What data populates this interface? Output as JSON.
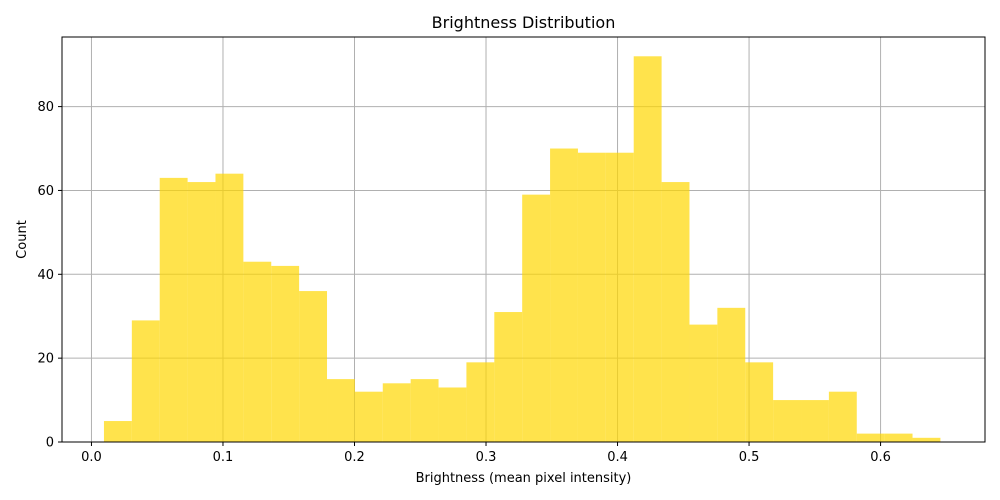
{
  "chart_data": {
    "type": "bar",
    "title": "Brightness Distribution",
    "xlabel": "Brightness (mean pixel intensity)",
    "ylabel": "Count",
    "xlim": [
      -0.0224,
      0.6794
    ],
    "ylim": [
      0,
      96.6
    ],
    "x_ticks": [
      0.0,
      0.1,
      0.2,
      0.3,
      0.4,
      0.5,
      0.6
    ],
    "x_tick_labels": [
      "0.0",
      "0.1",
      "0.2",
      "0.3",
      "0.4",
      "0.5",
      "0.6"
    ],
    "y_ticks": [
      0,
      20,
      40,
      60,
      80
    ],
    "y_tick_labels": [
      "0",
      "20",
      "40",
      "60",
      "80"
    ],
    "grid": true,
    "bar_color": "#ffd700",
    "bar_opacity": 0.7,
    "bins": [
      {
        "x0": 0.0095,
        "x1": 0.0307,
        "count": 5
      },
      {
        "x0": 0.0307,
        "x1": 0.0519,
        "count": 29
      },
      {
        "x0": 0.0519,
        "x1": 0.0731,
        "count": 63
      },
      {
        "x0": 0.0731,
        "x1": 0.0943,
        "count": 62
      },
      {
        "x0": 0.0943,
        "x1": 0.1155,
        "count": 64
      },
      {
        "x0": 0.1155,
        "x1": 0.1367,
        "count": 43
      },
      {
        "x0": 0.1367,
        "x1": 0.1579,
        "count": 42
      },
      {
        "x0": 0.1579,
        "x1": 0.1791,
        "count": 36
      },
      {
        "x0": 0.1791,
        "x1": 0.2003,
        "count": 15
      },
      {
        "x0": 0.2003,
        "x1": 0.2215,
        "count": 12
      },
      {
        "x0": 0.2215,
        "x1": 0.2427,
        "count": 14
      },
      {
        "x0": 0.2427,
        "x1": 0.2639,
        "count": 15
      },
      {
        "x0": 0.2639,
        "x1": 0.2851,
        "count": 13
      },
      {
        "x0": 0.2851,
        "x1": 0.3063,
        "count": 19
      },
      {
        "x0": 0.3063,
        "x1": 0.3275,
        "count": 31
      },
      {
        "x0": 0.3275,
        "x1": 0.3487,
        "count": 59
      },
      {
        "x0": 0.3487,
        "x1": 0.3699,
        "count": 70
      },
      {
        "x0": 0.3699,
        "x1": 0.3911,
        "count": 69
      },
      {
        "x0": 0.3911,
        "x1": 0.4123,
        "count": 69
      },
      {
        "x0": 0.4123,
        "x1": 0.4335,
        "count": 92
      },
      {
        "x0": 0.4335,
        "x1": 0.4547,
        "count": 62
      },
      {
        "x0": 0.4547,
        "x1": 0.4759,
        "count": 28
      },
      {
        "x0": 0.4759,
        "x1": 0.4971,
        "count": 32
      },
      {
        "x0": 0.4971,
        "x1": 0.5183,
        "count": 19
      },
      {
        "x0": 0.5183,
        "x1": 0.5395,
        "count": 10
      },
      {
        "x0": 0.5395,
        "x1": 0.5607,
        "count": 10
      },
      {
        "x0": 0.5607,
        "x1": 0.5819,
        "count": 12
      },
      {
        "x0": 0.5819,
        "x1": 0.6031,
        "count": 2
      },
      {
        "x0": 0.6031,
        "x1": 0.6243,
        "count": 2
      },
      {
        "x0": 0.6243,
        "x1": 0.6455,
        "count": 1
      }
    ]
  }
}
